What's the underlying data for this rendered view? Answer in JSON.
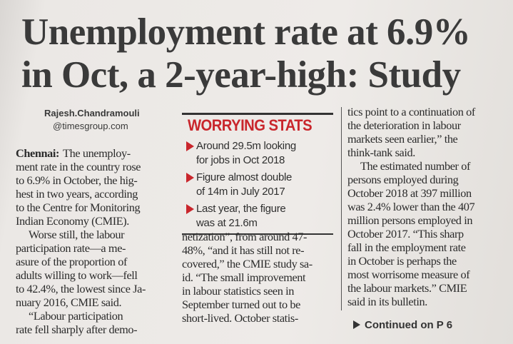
{
  "headline": {
    "lines": [
      "Unemployment rate at 6.9%",
      "in Oct, a 2-year-high: Study"
    ]
  },
  "byline": {
    "name": "Rajesh.Chandramouli",
    "handle": "@timesgroup.com"
  },
  "column_1": {
    "dateline": "Chennai:",
    "lines": [
      "The unemploy-",
      "ment rate in the country rose",
      "to 6.9% in October, the hig-",
      "hest in two years, according",
      "to the Centre for Monitoring",
      "Indian Economy (CMIE).",
      "Worse still, the labour",
      "participation rate—a me-",
      "asure of the proportion of",
      "adults willing to work—fell",
      "to 42.4%, the lowest since Ja-",
      "nuary 2016, CMIE said.",
      "“Labour participation",
      "rate fell sharply after demo-"
    ]
  },
  "stats_box": {
    "title": "WORRYING STATS",
    "items": [
      [
        "Around 29.5m looking",
        "for jobs in Oct 2018"
      ],
      [
        "Figure almost double",
        "of 14m in July 2017"
      ],
      [
        "Last year, the figure",
        "was at 21.6m"
      ]
    ]
  },
  "column_2": {
    "lines": [
      "netization”, from around 47-",
      "48%, “and it has still not re-",
      "covered,” the CMIE study sa-",
      "id. “The small improvement",
      "in labour statistics seen in",
      "September turned out to be",
      "short-lived. October statis-"
    ]
  },
  "column_3": {
    "lines": [
      "tics point to a continuation of",
      "the deterioration in labour",
      "markets seen earlier,” the",
      "think-tank said.",
      "The estimated number of",
      "persons employed during",
      "October 2018 at 397 million",
      "was 2.4% lower than the 407",
      "million persons employed in",
      "October 2017. “This sharp",
      "fall in the employment rate",
      "in October is perhaps the",
      "most worrisome measure of",
      "the labour markets.” CMIE",
      "said in its bulletin."
    ]
  },
  "continued": "Continued on P 6"
}
